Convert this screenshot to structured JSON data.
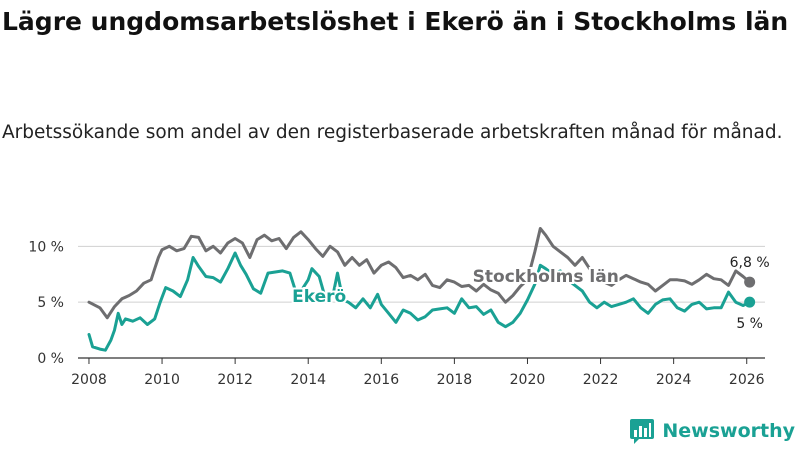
{
  "title": "Lägre ungdomsarbetslöshet i Ekerö än i Stockholms län",
  "subtitle": "Arbetssökande som andel av den registerbaserade arbetskraften månad för månad.",
  "brand": "Newsworthy",
  "colors": {
    "stockholm": "#6e6e70",
    "ekero": "#1aa194",
    "grid": "#d0d0d0",
    "axis": "#333333"
  },
  "chart_data": {
    "type": "line",
    "title": "Lägre ungdomsarbetslöshet i Ekerö än i Stockholms län",
    "xlabel": "",
    "ylabel": "",
    "xlim": [
      2007.7,
      2026.5
    ],
    "ylim": [
      0,
      12
    ],
    "grid": true,
    "x_ticks": [
      {
        "value": 2008,
        "label": "2008"
      },
      {
        "value": 2010,
        "label": "2010"
      },
      {
        "value": 2012,
        "label": "2012"
      },
      {
        "value": 2014,
        "label": "2014"
      },
      {
        "value": 2016,
        "label": "2016"
      },
      {
        "value": 2018,
        "label": "2018"
      },
      {
        "value": 2020,
        "label": "2020"
      },
      {
        "value": 2022,
        "label": "2022"
      },
      {
        "value": 2024,
        "label": "2024"
      },
      {
        "value": 2026,
        "label": "2026"
      }
    ],
    "y_ticks": [
      {
        "value": 0,
        "label": "0 %"
      },
      {
        "value": 5,
        "label": "5 %"
      },
      {
        "value": 10,
        "label": "10 %"
      }
    ],
    "series": [
      {
        "name": "Stockholms län",
        "color": "#6e6e70",
        "end_label": "6,8 %",
        "points": [
          [
            2008.0,
            5.0
          ],
          [
            2008.3,
            4.5
          ],
          [
            2008.5,
            3.6
          ],
          [
            2008.7,
            4.6
          ],
          [
            2008.9,
            5.3
          ],
          [
            2009.1,
            5.6
          ],
          [
            2009.3,
            6.0
          ],
          [
            2009.5,
            6.7
          ],
          [
            2009.7,
            7.0
          ],
          [
            2009.8,
            8.0
          ],
          [
            2009.9,
            9.0
          ],
          [
            2010.0,
            9.7
          ],
          [
            2010.2,
            10.0
          ],
          [
            2010.4,
            9.6
          ],
          [
            2010.6,
            9.8
          ],
          [
            2010.8,
            10.9
          ],
          [
            2011.0,
            10.8
          ],
          [
            2011.2,
            9.6
          ],
          [
            2011.4,
            10.0
          ],
          [
            2011.6,
            9.4
          ],
          [
            2011.8,
            10.3
          ],
          [
            2012.0,
            10.7
          ],
          [
            2012.2,
            10.3
          ],
          [
            2012.4,
            9.0
          ],
          [
            2012.6,
            10.6
          ],
          [
            2012.8,
            11.0
          ],
          [
            2013.0,
            10.5
          ],
          [
            2013.2,
            10.7
          ],
          [
            2013.4,
            9.8
          ],
          [
            2013.6,
            10.8
          ],
          [
            2013.8,
            11.3
          ],
          [
            2014.0,
            10.6
          ],
          [
            2014.2,
            9.8
          ],
          [
            2014.4,
            9.1
          ],
          [
            2014.6,
            10.0
          ],
          [
            2014.8,
            9.5
          ],
          [
            2015.0,
            8.3
          ],
          [
            2015.2,
            9.0
          ],
          [
            2015.4,
            8.3
          ],
          [
            2015.6,
            8.8
          ],
          [
            2015.8,
            7.6
          ],
          [
            2016.0,
            8.3
          ],
          [
            2016.2,
            8.6
          ],
          [
            2016.4,
            8.1
          ],
          [
            2016.6,
            7.2
          ],
          [
            2016.8,
            7.4
          ],
          [
            2017.0,
            7.0
          ],
          [
            2017.2,
            7.5
          ],
          [
            2017.4,
            6.5
          ],
          [
            2017.6,
            6.3
          ],
          [
            2017.8,
            7.0
          ],
          [
            2018.0,
            6.8
          ],
          [
            2018.2,
            6.4
          ],
          [
            2018.4,
            6.5
          ],
          [
            2018.6,
            6.0
          ],
          [
            2018.8,
            6.6
          ],
          [
            2019.0,
            6.1
          ],
          [
            2019.2,
            5.8
          ],
          [
            2019.4,
            5.0
          ],
          [
            2019.6,
            5.6
          ],
          [
            2019.8,
            6.4
          ],
          [
            2020.0,
            7.0
          ],
          [
            2020.2,
            9.5
          ],
          [
            2020.35,
            11.6
          ],
          [
            2020.5,
            11.0
          ],
          [
            2020.7,
            10.0
          ],
          [
            2020.9,
            9.5
          ],
          [
            2021.1,
            9.0
          ],
          [
            2021.3,
            8.3
          ],
          [
            2021.5,
            9.0
          ],
          [
            2021.7,
            8.0
          ],
          [
            2021.9,
            7.3
          ],
          [
            2022.1,
            6.8
          ],
          [
            2022.3,
            6.5
          ],
          [
            2022.5,
            7.0
          ],
          [
            2022.7,
            7.4
          ],
          [
            2022.9,
            7.1
          ],
          [
            2023.1,
            6.8
          ],
          [
            2023.3,
            6.6
          ],
          [
            2023.5,
            6.0
          ],
          [
            2023.7,
            6.5
          ],
          [
            2023.9,
            7.0
          ],
          [
            2024.1,
            7.0
          ],
          [
            2024.3,
            6.9
          ],
          [
            2024.5,
            6.6
          ],
          [
            2024.7,
            7.0
          ],
          [
            2024.9,
            7.5
          ],
          [
            2025.1,
            7.1
          ],
          [
            2025.3,
            7.0
          ],
          [
            2025.5,
            6.5
          ],
          [
            2025.7,
            7.8
          ],
          [
            2025.9,
            7.3
          ],
          [
            2026.08,
            6.8
          ]
        ]
      },
      {
        "name": "Ekerö",
        "color": "#1aa194",
        "end_label": "5 %",
        "points": [
          [
            2008.0,
            2.1
          ],
          [
            2008.1,
            1.0
          ],
          [
            2008.3,
            0.8
          ],
          [
            2008.45,
            0.7
          ],
          [
            2008.6,
            1.6
          ],
          [
            2008.7,
            2.5
          ],
          [
            2008.8,
            4.0
          ],
          [
            2008.9,
            3.0
          ],
          [
            2009.0,
            3.5
          ],
          [
            2009.2,
            3.3
          ],
          [
            2009.4,
            3.6
          ],
          [
            2009.6,
            3.0
          ],
          [
            2009.8,
            3.5
          ],
          [
            2009.95,
            5.0
          ],
          [
            2010.1,
            6.3
          ],
          [
            2010.3,
            6.0
          ],
          [
            2010.5,
            5.5
          ],
          [
            2010.7,
            7.0
          ],
          [
            2010.85,
            9.0
          ],
          [
            2011.0,
            8.2
          ],
          [
            2011.2,
            7.3
          ],
          [
            2011.4,
            7.2
          ],
          [
            2011.6,
            6.8
          ],
          [
            2011.8,
            8.0
          ],
          [
            2012.0,
            9.4
          ],
          [
            2012.15,
            8.3
          ],
          [
            2012.3,
            7.5
          ],
          [
            2012.5,
            6.2
          ],
          [
            2012.7,
            5.8
          ],
          [
            2012.9,
            7.6
          ],
          [
            2013.1,
            7.7
          ],
          [
            2013.3,
            7.8
          ],
          [
            2013.5,
            7.6
          ],
          [
            2013.7,
            5.5
          ],
          [
            2013.9,
            6.5
          ],
          [
            2014.0,
            7.0
          ],
          [
            2014.1,
            8.0
          ],
          [
            2014.3,
            7.3
          ],
          [
            2014.5,
            5.0
          ],
          [
            2014.7,
            6.0
          ],
          [
            2014.8,
            7.6
          ],
          [
            2014.95,
            5.2
          ],
          [
            2015.1,
            5.0
          ],
          [
            2015.3,
            4.5
          ],
          [
            2015.5,
            5.3
          ],
          [
            2015.7,
            4.5
          ],
          [
            2015.9,
            5.7
          ],
          [
            2016.0,
            4.8
          ],
          [
            2016.2,
            4.0
          ],
          [
            2016.4,
            3.2
          ],
          [
            2016.6,
            4.3
          ],
          [
            2016.8,
            4.0
          ],
          [
            2017.0,
            3.4
          ],
          [
            2017.2,
            3.7
          ],
          [
            2017.4,
            4.3
          ],
          [
            2017.6,
            4.4
          ],
          [
            2017.8,
            4.5
          ],
          [
            2018.0,
            4.0
          ],
          [
            2018.2,
            5.3
          ],
          [
            2018.4,
            4.5
          ],
          [
            2018.6,
            4.6
          ],
          [
            2018.8,
            3.9
          ],
          [
            2019.0,
            4.3
          ],
          [
            2019.2,
            3.2
          ],
          [
            2019.4,
            2.8
          ],
          [
            2019.6,
            3.2
          ],
          [
            2019.8,
            4.0
          ],
          [
            2020.0,
            5.2
          ],
          [
            2020.2,
            6.6
          ],
          [
            2020.35,
            8.3
          ],
          [
            2020.5,
            8.0
          ],
          [
            2020.7,
            7.5
          ],
          [
            2020.9,
            7.8
          ],
          [
            2021.1,
            7.0
          ],
          [
            2021.3,
            6.5
          ],
          [
            2021.5,
            6.0
          ],
          [
            2021.7,
            5.0
          ],
          [
            2021.9,
            4.5
          ],
          [
            2022.1,
            5.0
          ],
          [
            2022.3,
            4.6
          ],
          [
            2022.5,
            4.8
          ],
          [
            2022.7,
            5.0
          ],
          [
            2022.9,
            5.3
          ],
          [
            2023.1,
            4.5
          ],
          [
            2023.3,
            4.0
          ],
          [
            2023.5,
            4.8
          ],
          [
            2023.7,
            5.2
          ],
          [
            2023.9,
            5.3
          ],
          [
            2024.1,
            4.5
          ],
          [
            2024.3,
            4.2
          ],
          [
            2024.5,
            4.8
          ],
          [
            2024.7,
            5.0
          ],
          [
            2024.9,
            4.4
          ],
          [
            2025.1,
            4.5
          ],
          [
            2025.3,
            4.5
          ],
          [
            2025.5,
            5.9
          ],
          [
            2025.7,
            5.0
          ],
          [
            2025.9,
            4.7
          ],
          [
            2026.08,
            5.0
          ]
        ]
      }
    ],
    "annotations": [
      {
        "series": "Stockholms län",
        "text": "Stockholms län",
        "x": 2020.5,
        "y": 6.8
      },
      {
        "series": "Ekerö",
        "text": "Ekerö",
        "x": 2014.3,
        "y": 5.0
      }
    ]
  }
}
